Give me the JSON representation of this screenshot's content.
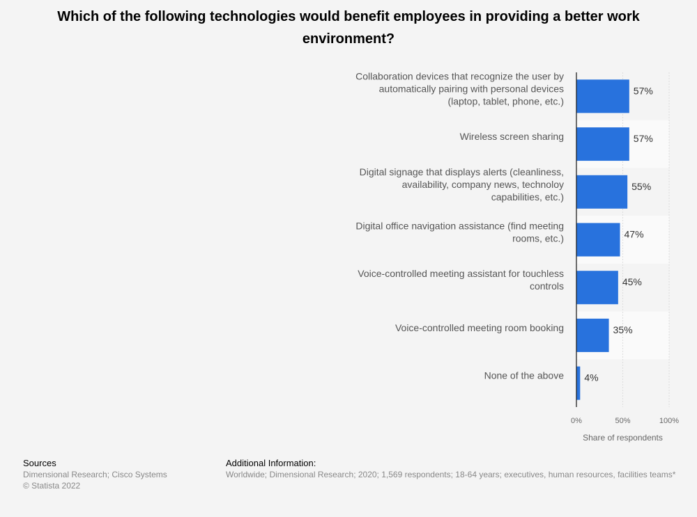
{
  "title": "Which of the following technologies would benefit employees in providing a better work environment?",
  "chart_data": {
    "type": "bar",
    "orientation": "horizontal",
    "categories": [
      [
        "Collaboration devices that recognize the user by",
        "automatically pairing with personal devices",
        "(laptop, tablet, phone, etc.)"
      ],
      [
        "Wireless screen sharing"
      ],
      [
        "Digital signage that displays alerts (cleanliness,",
        "availability, company news, technoloy",
        "capabilities, etc.)"
      ],
      [
        "Digital office navigation assistance (find meeting",
        "rooms, etc.)"
      ],
      [
        "Voice-controlled meeting assistant for touchless",
        "controls"
      ],
      [
        "Voice-controlled meeting room booking"
      ],
      [
        "None of the above"
      ]
    ],
    "values": [
      57,
      57,
      55,
      47,
      45,
      35,
      4
    ],
    "value_labels": [
      "57%",
      "57%",
      "55%",
      "47%",
      "45%",
      "35%",
      "4%"
    ],
    "xlim": [
      0,
      100
    ],
    "ticks": [
      0,
      50,
      100
    ],
    "tick_labels": [
      "0%",
      "50%",
      "100%"
    ],
    "xlabel": "Share of respondents",
    "bar_color": "#2872dd",
    "grid": true
  },
  "footer": {
    "sources_heading": "Sources",
    "sources_lines": [
      "Dimensional Research; Cisco Systems",
      "© Statista 2022"
    ],
    "info_heading": "Additional Information:",
    "info_text": "Worldwide; Dimensional Research; 2020; 1,569 respondents; 18-64 years; executives, human resources, facilities teams*"
  }
}
